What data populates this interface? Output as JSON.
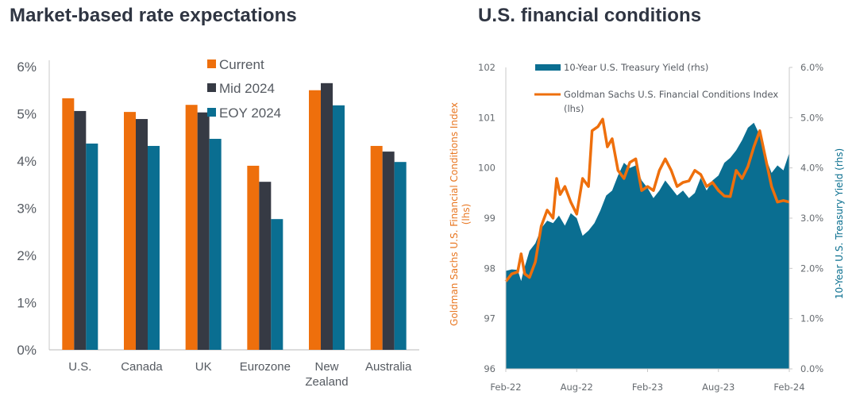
{
  "colors": {
    "orange": "#ee6f0c",
    "dark": "#363a44",
    "teal": "#0a6e91",
    "axis": "#c8c8c8",
    "title": "#2f3542"
  },
  "chart_data": [
    {
      "type": "bar",
      "title": "Market-based rate expectations",
      "xlabel": "",
      "ylabel": "",
      "ylim": [
        0,
        6
      ],
      "yticks": [
        "0%",
        "1%",
        "2%",
        "3%",
        "4%",
        "5%",
        "6%"
      ],
      "ytick_values": [
        0,
        1,
        2,
        3,
        4,
        5,
        6
      ],
      "grid": false,
      "legend": "top-center",
      "categories": [
        "U.S.",
        "Canada",
        "UK",
        "Eurozone",
        "New Zealand",
        "Australia"
      ],
      "category_lines": [
        [
          "U.S."
        ],
        [
          "Canada"
        ],
        [
          "UK"
        ],
        [
          "Eurozone"
        ],
        [
          "New",
          "Zealand"
        ],
        [
          "Australia"
        ]
      ],
      "series": [
        {
          "name": "Current",
          "color_key": "orange",
          "values": [
            5.33,
            5.04,
            5.19,
            3.9,
            5.5,
            4.32
          ]
        },
        {
          "name": "Mid 2024",
          "color_key": "dark",
          "values": [
            5.06,
            4.89,
            5.03,
            3.56,
            5.65,
            4.2
          ]
        },
        {
          "name": "EOY 2024",
          "color_key": "teal",
          "values": [
            4.37,
            4.32,
            4.47,
            2.77,
            5.18,
            3.98
          ]
        }
      ]
    },
    {
      "type": "line",
      "subtype": "line + area (dual axis)",
      "title": "U.S. financial conditions",
      "xlabel": "",
      "ylabel_left": "Goldman Sachs U.S. Financial Conditions Index (lhs)",
      "ylabel_right": "10-Year U.S. Treasury Yield (rhs)",
      "ylim_left": [
        96,
        102
      ],
      "ylim_right": [
        0,
        6
      ],
      "yticks_left": [
        "96",
        "97",
        "98",
        "99",
        "100",
        "101",
        "102"
      ],
      "yticks_right": [
        "0.0%",
        "1.0%",
        "2.0%",
        "3.0%",
        "4.0%",
        "5.0%",
        "6.0%"
      ],
      "xticks": [
        "Feb-22",
        "Aug-22",
        "Feb-23",
        "Aug-23",
        "Feb-24"
      ],
      "xlim_months": [
        0,
        24
      ],
      "grid": false,
      "legend": "top-left",
      "series": [
        {
          "name": "10-Year U.S. Treasury Yield (rhs)",
          "kind": "area",
          "axis": "right",
          "color_key": "teal",
          "x_months": [
            0,
            0.5,
            1,
            1.3,
            1.5,
            2,
            2.5,
            3,
            3.5,
            4,
            4.5,
            5,
            5.5,
            6,
            6.5,
            7,
            7.5,
            8,
            8.5,
            9,
            9.5,
            10,
            10.5,
            11,
            11.5,
            12,
            12.5,
            13,
            13.5,
            14,
            14.5,
            15,
            15.5,
            16,
            16.5,
            17,
            17.5,
            18,
            18.5,
            19,
            19.5,
            20,
            20.5,
            21,
            21.5,
            22,
            22.5,
            23,
            23.5,
            24
          ],
          "values": [
            1.95,
            1.98,
            1.97,
            1.75,
            1.95,
            2.35,
            2.5,
            2.8,
            2.95,
            2.9,
            3.05,
            2.85,
            3.1,
            3.0,
            2.65,
            2.75,
            2.9,
            3.15,
            3.45,
            3.55,
            3.85,
            4.1,
            4.0,
            4.05,
            3.75,
            3.6,
            3.4,
            3.55,
            3.75,
            3.6,
            3.45,
            3.55,
            3.4,
            3.5,
            3.8,
            3.55,
            3.75,
            3.85,
            4.1,
            4.2,
            4.35,
            4.55,
            4.8,
            4.9,
            4.65,
            4.2,
            3.9,
            4.05,
            3.95,
            4.3
          ]
        },
        {
          "name": "Goldman Sachs U.S. Financial Conditions Index (lhs)",
          "kind": "line",
          "axis": "left",
          "color_key": "orange",
          "x_months": [
            0,
            0.5,
            1,
            1.3,
            1.6,
            2,
            2.5,
            3,
            3.5,
            4,
            4.3,
            4.6,
            5,
            5.5,
            6,
            6.5,
            7,
            7.3,
            7.8,
            8.2,
            8.6,
            9,
            9.5,
            10,
            10.5,
            11,
            11.5,
            12,
            12.5,
            13,
            13.5,
            14,
            14.5,
            15,
            15.5,
            16,
            16.5,
            17,
            17.5,
            18,
            18.5,
            19,
            19.5,
            20,
            20.5,
            21,
            21.5,
            22,
            22.5,
            23,
            23.5,
            24
          ],
          "values": [
            97.74,
            97.89,
            97.93,
            98.29,
            97.89,
            97.82,
            98.13,
            98.84,
            99.16,
            99.0,
            99.79,
            99.47,
            99.63,
            99.32,
            99.08,
            99.79,
            99.63,
            100.74,
            100.82,
            100.97,
            100.42,
            100.58,
            99.95,
            99.79,
            100.11,
            100.18,
            99.55,
            99.63,
            99.55,
            99.95,
            100.18,
            99.95,
            99.63,
            99.71,
            99.74,
            99.95,
            99.87,
            99.63,
            99.71,
            99.55,
            99.44,
            99.43,
            99.95,
            99.79,
            100.03,
            100.42,
            100.74,
            100.18,
            99.63,
            99.32,
            99.35,
            99.32
          ]
        }
      ]
    }
  ]
}
